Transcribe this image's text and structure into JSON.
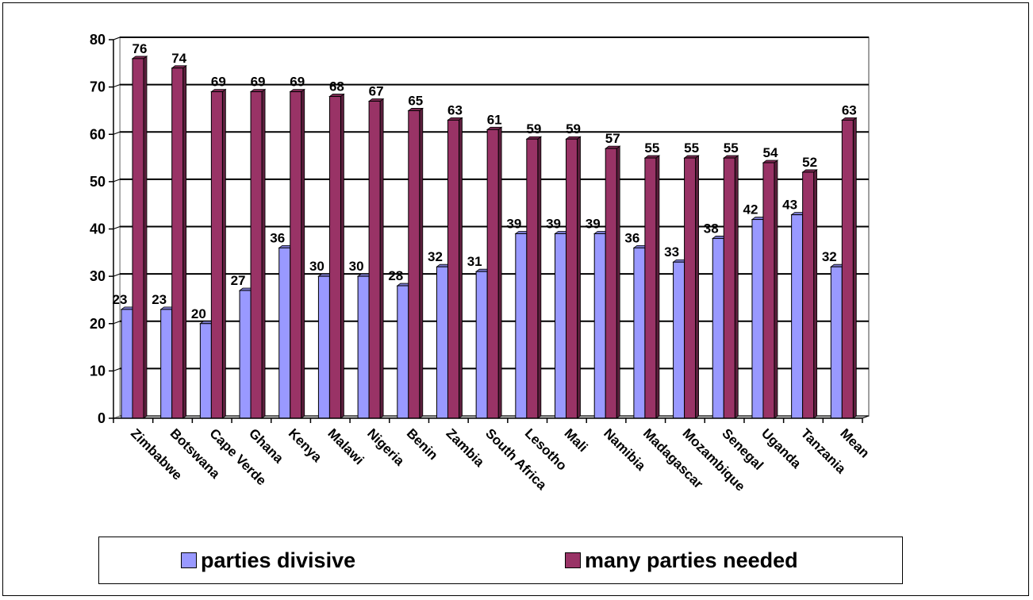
{
  "chart_data": {
    "type": "bar",
    "title": "",
    "xlabel": "",
    "ylabel": "",
    "ylim": [
      0,
      80
    ],
    "yticks": [
      "0",
      "10",
      "20",
      "30",
      "40",
      "50",
      "60",
      "70",
      "80"
    ],
    "grid": true,
    "legend_position": "bottom",
    "categories": [
      "Zimbabwe",
      "Botswana",
      "Cape Verde",
      "Ghana",
      "Kenya",
      "Malawi",
      "Nigeria",
      "Benin",
      "Zambia",
      "South Africa",
      "Lesotho",
      "Mali",
      "Namibia",
      "Madagascar",
      "Mozambique",
      "Senegal",
      "Uganda",
      "Tanzania",
      "Mean"
    ],
    "series": [
      {
        "name": "parties divisive",
        "color": "#9999ff",
        "values": [
          23,
          23,
          20,
          27,
          36,
          30,
          30,
          28,
          32,
          31,
          39,
          39,
          39,
          36,
          33,
          38,
          42,
          43,
          32
        ]
      },
      {
        "name": "many parties needed",
        "color": "#993366",
        "values": [
          76,
          74,
          69,
          69,
          69,
          68,
          67,
          65,
          63,
          61,
          59,
          59,
          57,
          55,
          55,
          55,
          54,
          52,
          63
        ]
      }
    ]
  }
}
